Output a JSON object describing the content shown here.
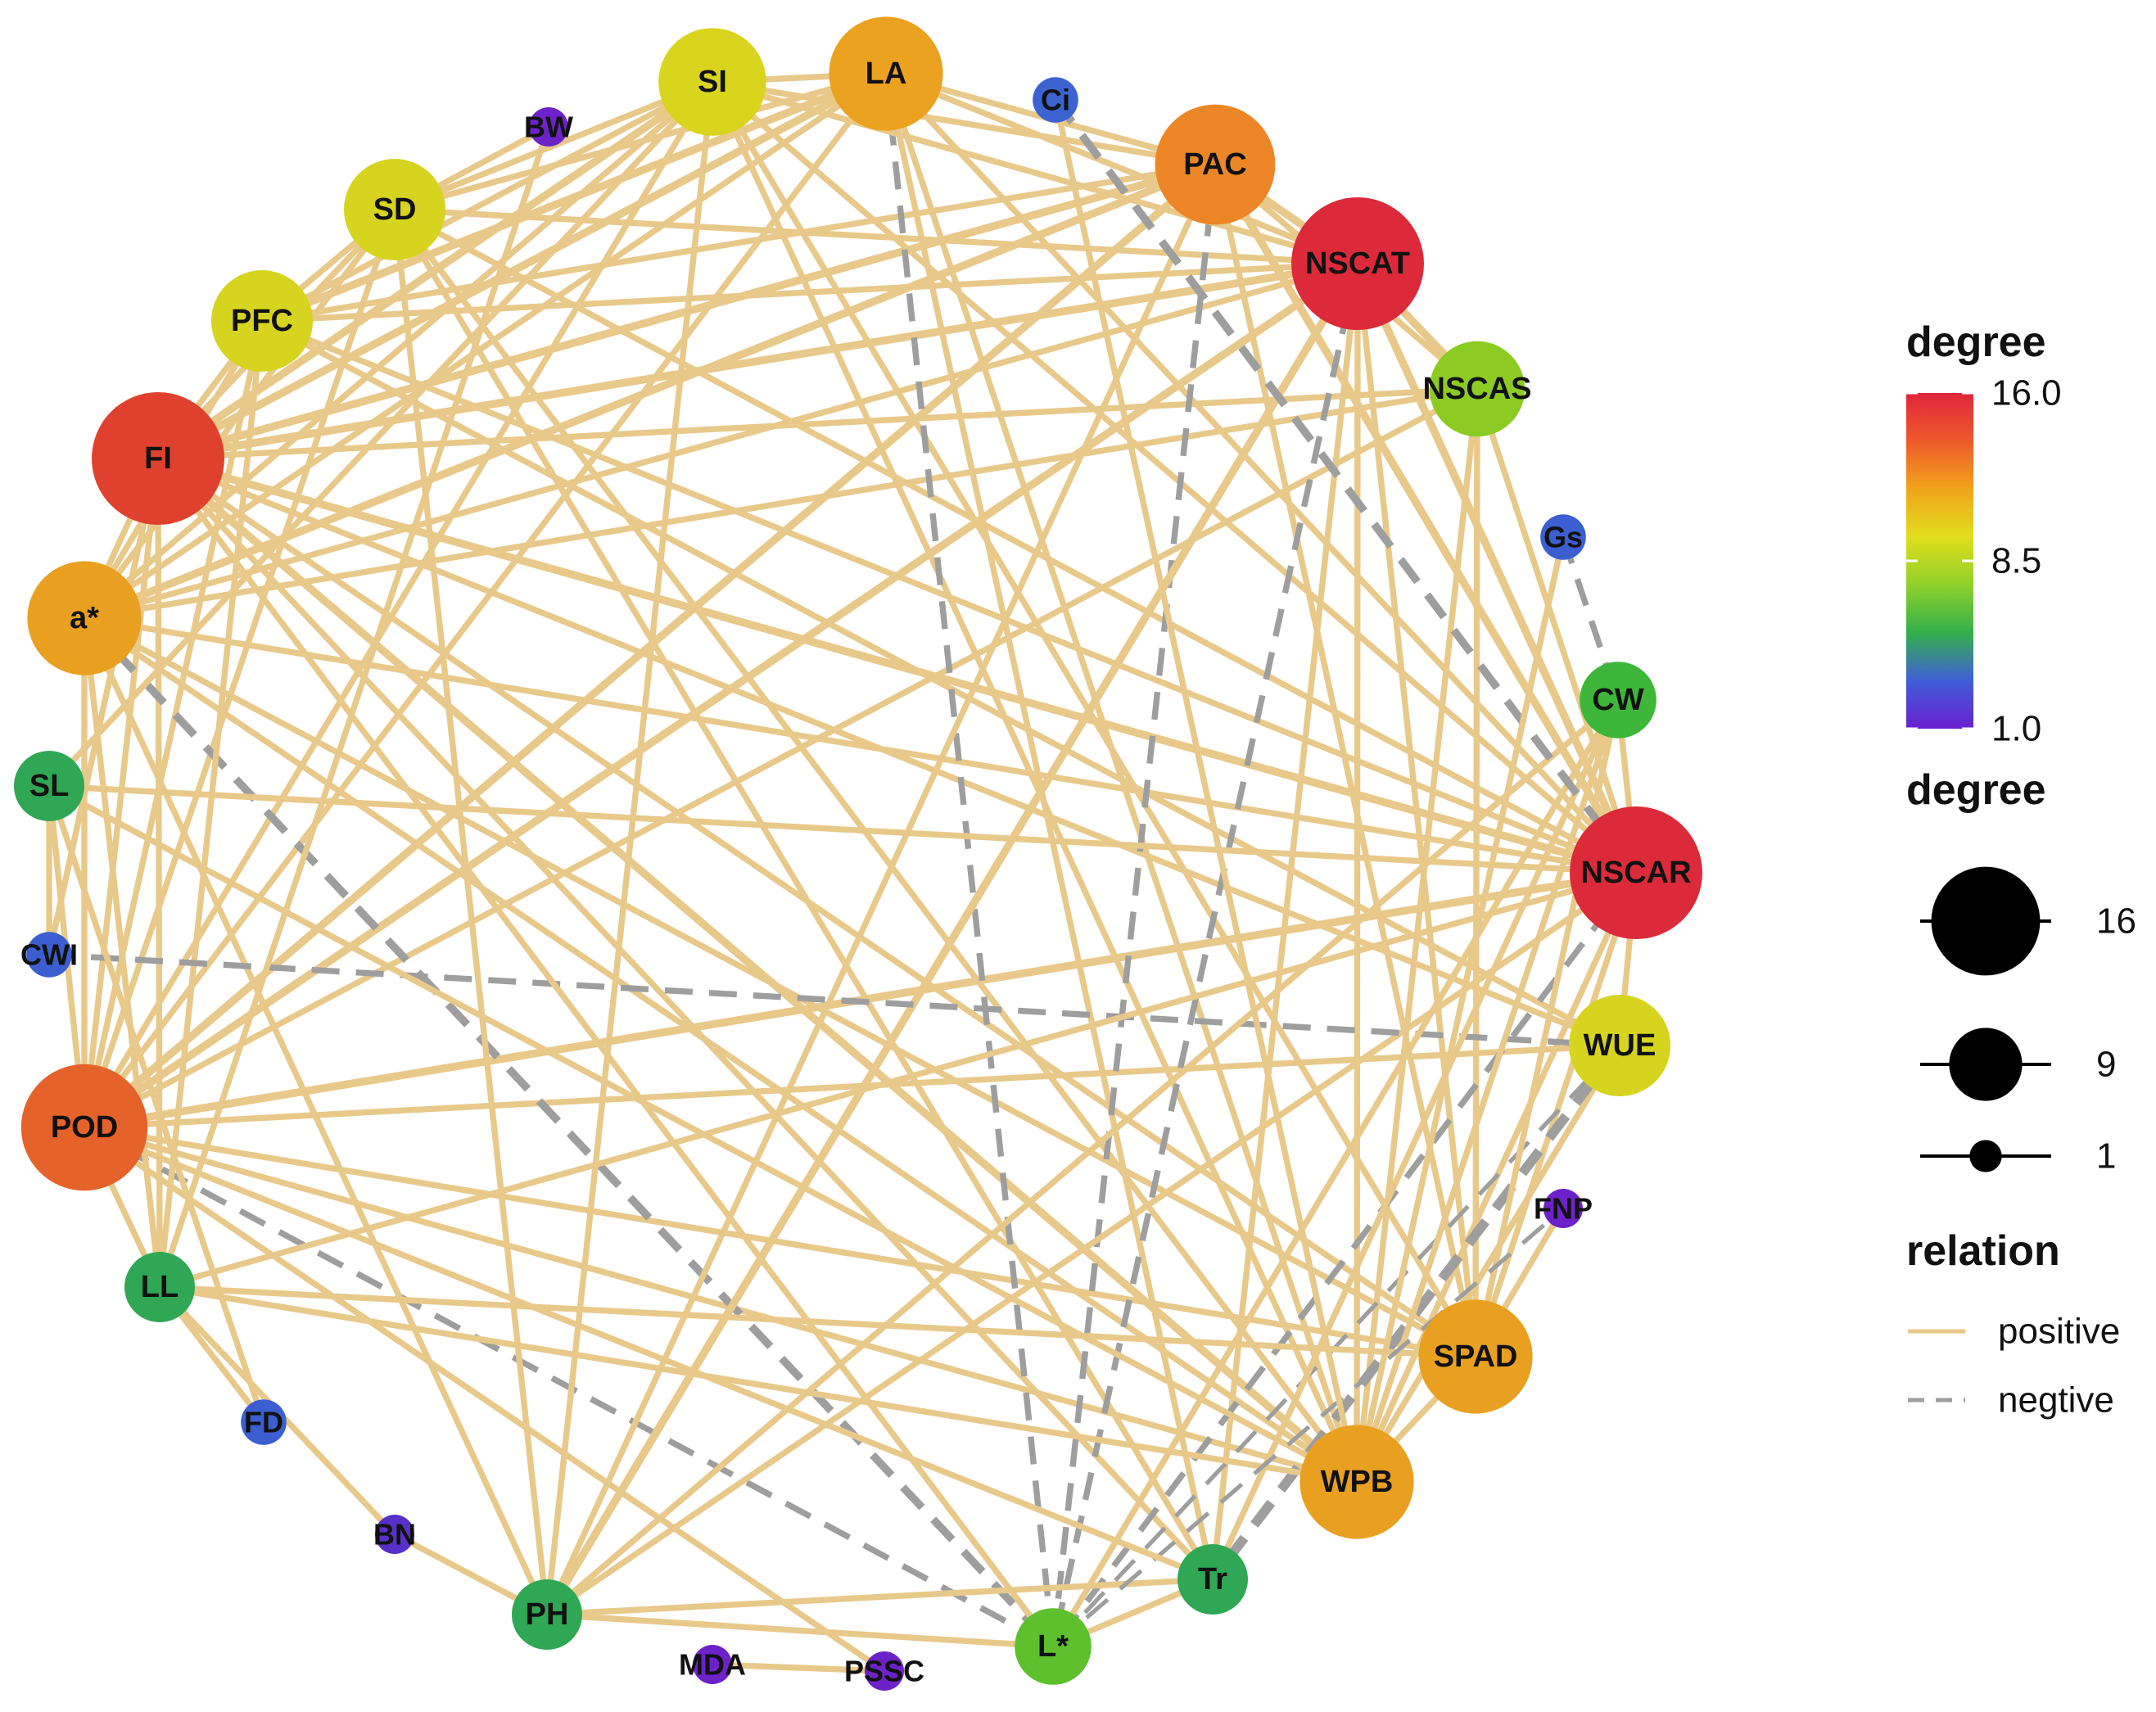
{
  "colors": {
    "positive": "#e8c98a",
    "negative": "#9e9e9e",
    "gradient": [
      "#6a1fcf",
      "#3f5fd8",
      "#33b04a",
      "#8fd12a",
      "#e2dd1c",
      "#f0a41c",
      "#ee5a2a",
      "#e0263c"
    ]
  },
  "nodes": [
    {
      "id": "SI",
      "label": "SI",
      "degree": 12,
      "color": "#d9d51f"
    },
    {
      "id": "LA",
      "label": "LA",
      "degree": 13,
      "color": "#eba221"
    },
    {
      "id": "Ci",
      "label": "Ci",
      "degree": 2,
      "color": "#3b63d2"
    },
    {
      "id": "PAC",
      "label": "PAC",
      "degree": 14,
      "color": "#ec8626"
    },
    {
      "id": "NSCAT",
      "label": "NSCAT",
      "degree": 16,
      "color": "#dc2a3a"
    },
    {
      "id": "NSCAS",
      "label": "NSCAS",
      "degree": 10,
      "color": "#8ccb22"
    },
    {
      "id": "Gs",
      "label": "Gs",
      "degree": 2,
      "color": "#3b5fd0"
    },
    {
      "id": "CW",
      "label": "CW",
      "degree": 7,
      "color": "#3db63a"
    },
    {
      "id": "NSCAR",
      "label": "NSCAR",
      "degree": 16,
      "color": "#dc2a3a"
    },
    {
      "id": "WUE",
      "label": "WUE",
      "degree": 11,
      "color": "#d6d41f"
    },
    {
      "id": "FNP",
      "label": "FNP",
      "degree": 1,
      "color": "#6d22c9"
    },
    {
      "id": "SPAD",
      "label": "SPAD",
      "degree": 13,
      "color": "#e9a021"
    },
    {
      "id": "WPB",
      "label": "WPB",
      "degree": 13,
      "color": "#e9a021"
    },
    {
      "id": "Tr",
      "label": "Tr",
      "degree": 6,
      "color": "#2fa755"
    },
    {
      "id": "L*",
      "label": "L*",
      "degree": 7,
      "color": "#5dc02c"
    },
    {
      "id": "PSSC",
      "label": "PSSC",
      "degree": 1,
      "color": "#6d22c9"
    },
    {
      "id": "MDA",
      "label": "MDA",
      "degree": 1,
      "color": "#6d22c9"
    },
    {
      "id": "PH",
      "label": "PH",
      "degree": 6,
      "color": "#2fa755"
    },
    {
      "id": "BN",
      "label": "BN",
      "degree": 1,
      "color": "#5630c8"
    },
    {
      "id": "FD",
      "label": "FD",
      "degree": 2,
      "color": "#3b5fd0"
    },
    {
      "id": "LL",
      "label": "LL",
      "degree": 6,
      "color": "#2fa755"
    },
    {
      "id": "POD",
      "label": "POD",
      "degree": 15,
      "color": "#e6622b"
    },
    {
      "id": "CWI",
      "label": "CWI",
      "degree": 2,
      "color": "#3b5fd0"
    },
    {
      "id": "SL",
      "label": "SL",
      "degree": 6,
      "color": "#2fa755"
    },
    {
      "id": "a*",
      "label": "a*",
      "degree": 13,
      "color": "#e9a021"
    },
    {
      "id": "FI",
      "label": "FI",
      "degree": 16,
      "color": "#e0412f"
    },
    {
      "id": "PFC",
      "label": "PFC",
      "degree": 11,
      "color": "#d6d41f"
    },
    {
      "id": "SD",
      "label": "SD",
      "degree": 11,
      "color": "#d6d41f"
    },
    {
      "id": "BW",
      "label": "BW",
      "degree": 1,
      "color": "#6d22c9"
    }
  ],
  "edges": [
    {
      "source": "FI",
      "target": "SI",
      "relation": "positive",
      "weight": 3
    },
    {
      "source": "FI",
      "target": "LA",
      "relation": "positive",
      "weight": 3
    },
    {
      "source": "FI",
      "target": "PAC",
      "relation": "positive",
      "weight": 3
    },
    {
      "source": "FI",
      "target": "NSCAT",
      "relation": "positive",
      "weight": 3
    },
    {
      "source": "FI",
      "target": "NSCAS",
      "relation": "positive",
      "weight": 2
    },
    {
      "source": "FI",
      "target": "NSCAR",
      "relation": "positive",
      "weight": 3
    },
    {
      "source": "FI",
      "target": "WUE",
      "relation": "positive",
      "weight": 2
    },
    {
      "source": "FI",
      "target": "SPAD",
      "relation": "positive",
      "weight": 2
    },
    {
      "source": "FI",
      "target": "WPB",
      "relation": "positive",
      "weight": 3
    },
    {
      "source": "FI",
      "target": "POD",
      "relation": "positive",
      "weight": 2
    },
    {
      "source": "FI",
      "target": "PFC",
      "relation": "positive",
      "weight": 2
    },
    {
      "source": "FI",
      "target": "SD",
      "relation": "positive",
      "weight": 2
    },
    {
      "source": "FI",
      "target": "LL",
      "relation": "positive",
      "weight": 2
    },
    {
      "source": "FI",
      "target": "Tr",
      "relation": "positive",
      "weight": 2
    },
    {
      "source": "FI",
      "target": "a*",
      "relation": "positive",
      "weight": 2
    },
    {
      "source": "POD",
      "target": "SI",
      "relation": "positive",
      "weight": 2
    },
    {
      "source": "POD",
      "target": "LA",
      "relation": "positive",
      "weight": 2
    },
    {
      "source": "POD",
      "target": "PAC",
      "relation": "positive",
      "weight": 3
    },
    {
      "source": "POD",
      "target": "NSCAT",
      "relation": "positive",
      "weight": 3
    },
    {
      "source": "POD",
      "target": "NSCAR",
      "relation": "positive",
      "weight": 3
    },
    {
      "source": "POD",
      "target": "WUE",
      "relation": "positive",
      "weight": 2
    },
    {
      "source": "POD",
      "target": "SPAD",
      "relation": "positive",
      "weight": 2
    },
    {
      "source": "POD",
      "target": "WPB",
      "relation": "positive",
      "weight": 2
    },
    {
      "source": "POD",
      "target": "PFC",
      "relation": "positive",
      "weight": 2
    },
    {
      "source": "POD",
      "target": "SD",
      "relation": "positive",
      "weight": 2
    },
    {
      "source": "POD",
      "target": "a*",
      "relation": "positive",
      "weight": 2
    },
    {
      "source": "POD",
      "target": "NSCAS",
      "relation": "positive",
      "weight": 2
    },
    {
      "source": "POD",
      "target": "L*",
      "relation": "negative",
      "weight": 2
    },
    {
      "source": "a*",
      "target": "SI",
      "relation": "positive",
      "weight": 2
    },
    {
      "source": "a*",
      "target": "LA",
      "relation": "positive",
      "weight": 2
    },
    {
      "source": "a*",
      "target": "PAC",
      "relation": "positive",
      "weight": 3
    },
    {
      "source": "a*",
      "target": "NSCAT",
      "relation": "positive",
      "weight": 2
    },
    {
      "source": "a*",
      "target": "NSCAR",
      "relation": "positive",
      "weight": 2
    },
    {
      "source": "a*",
      "target": "NSCAS",
      "relation": "positive",
      "weight": 2
    },
    {
      "source": "a*",
      "target": "SPAD",
      "relation": "positive",
      "weight": 2
    },
    {
      "source": "a*",
      "target": "WPB",
      "relation": "positive",
      "weight": 2
    },
    {
      "source": "a*",
      "target": "PFC",
      "relation": "positive",
      "weight": 2
    },
    {
      "source": "a*",
      "target": "SD",
      "relation": "positive",
      "weight": 2
    },
    {
      "source": "a*",
      "target": "L*",
      "relation": "negative",
      "weight": 3
    },
    {
      "source": "a*",
      "target": "PH",
      "relation": "positive",
      "weight": 2
    },
    {
      "source": "PFC",
      "target": "SI",
      "relation": "positive",
      "weight": 2
    },
    {
      "source": "PFC",
      "target": "LA",
      "relation": "positive",
      "weight": 3
    },
    {
      "source": "PFC",
      "target": "PAC",
      "relation": "positive",
      "weight": 2
    },
    {
      "source": "PFC",
      "target": "NSCAT",
      "relation": "positive",
      "weight": 2
    },
    {
      "source": "PFC",
      "target": "NSCAR",
      "relation": "positive",
      "weight": 2
    },
    {
      "source": "PFC",
      "target": "WUE",
      "relation": "positive",
      "weight": 2
    },
    {
      "source": "PFC",
      "target": "SD",
      "relation": "positive",
      "weight": 2
    },
    {
      "source": "PFC",
      "target": "LL",
      "relation": "positive",
      "weight": 2
    },
    {
      "source": "SD",
      "target": "SI",
      "relation": "positive",
      "weight": 2
    },
    {
      "source": "SD",
      "target": "LA",
      "relation": "positive",
      "weight": 2
    },
    {
      "source": "SD",
      "target": "NSCAT",
      "relation": "positive",
      "weight": 2
    },
    {
      "source": "SD",
      "target": "NSCAR",
      "relation": "positive",
      "weight": 2
    },
    {
      "source": "SD",
      "target": "WPB",
      "relation": "positive",
      "weight": 2
    },
    {
      "source": "SD",
      "target": "PH",
      "relation": "positive",
      "weight": 2
    },
    {
      "source": "SD",
      "target": "Tr",
      "relation": "positive",
      "weight": 2
    },
    {
      "source": "SI",
      "target": "LA",
      "relation": "positive",
      "weight": 2
    },
    {
      "source": "SI",
      "target": "PAC",
      "relation": "positive",
      "weight": 2
    },
    {
      "source": "SI",
      "target": "NSCAR",
      "relation": "positive",
      "weight": 2
    },
    {
      "source": "SI",
      "target": "WPB",
      "relation": "positive",
      "weight": 2
    },
    {
      "source": "SI",
      "target": "PH",
      "relation": "positive",
      "weight": 2
    },
    {
      "source": "SI",
      "target": "SPAD",
      "relation": "positive",
      "weight": 2
    },
    {
      "source": "LA",
      "target": "PAC",
      "relation": "positive",
      "weight": 2
    },
    {
      "source": "LA",
      "target": "NSCAT",
      "relation": "positive",
      "weight": 2
    },
    {
      "source": "LA",
      "target": "NSCAR",
      "relation": "positive",
      "weight": 2
    },
    {
      "source": "LA",
      "target": "WPB",
      "relation": "positive",
      "weight": 2
    },
    {
      "source": "LA",
      "target": "L*",
      "relation": "negative",
      "weight": 2
    },
    {
      "source": "LA",
      "target": "Tr",
      "relation": "positive",
      "weight": 2
    },
    {
      "source": "PAC",
      "target": "NSCAT",
      "relation": "positive",
      "weight": 3
    },
    {
      "source": "PAC",
      "target": "NSCAS",
      "relation": "positive",
      "weight": 2
    },
    {
      "source": "PAC",
      "target": "NSCAR",
      "relation": "positive",
      "weight": 3
    },
    {
      "source": "PAC",
      "target": "SPAD",
      "relation": "positive",
      "weight": 2
    },
    {
      "source": "PAC",
      "target": "L*",
      "relation": "negative",
      "weight": 2
    },
    {
      "source": "PAC",
      "target": "PH",
      "relation": "positive",
      "weight": 2
    },
    {
      "source": "NSCAT",
      "target": "NSCAS",
      "relation": "positive",
      "weight": 3
    },
    {
      "source": "NSCAT",
      "target": "NSCAR",
      "relation": "positive",
      "weight": 3
    },
    {
      "source": "NSCAT",
      "target": "WPB",
      "relation": "positive",
      "weight": 2
    },
    {
      "source": "NSCAT",
      "target": "SPAD",
      "relation": "positive",
      "weight": 2
    },
    {
      "source": "NSCAT",
      "target": "Tr",
      "relation": "positive",
      "weight": 2
    },
    {
      "source": "NSCAT",
      "target": "L*",
      "relation": "negative",
      "weight": 2
    },
    {
      "source": "NSCAT",
      "target": "PH",
      "relation": "positive",
      "weight": 3
    },
    {
      "source": "NSCAS",
      "target": "NSCAR",
      "relation": "positive",
      "weight": 2
    },
    {
      "source": "NSCAS",
      "target": "SPAD",
      "relation": "positive",
      "weight": 2
    },
    {
      "source": "NSCAS",
      "target": "WPB",
      "relation": "positive",
      "weight": 2
    },
    {
      "source": "NSCAR",
      "target": "WUE",
      "relation": "positive",
      "weight": 2
    },
    {
      "source": "NSCAR",
      "target": "WPB",
      "relation": "positive",
      "weight": 2
    },
    {
      "source": "NSCAR",
      "target": "SPAD",
      "relation": "positive",
      "weight": 2
    },
    {
      "source": "NSCAR",
      "target": "L*",
      "relation": "negative",
      "weight": 2
    },
    {
      "source": "NSCAR",
      "target": "PH",
      "relation": "positive",
      "weight": 2
    },
    {
      "source": "NSCAR",
      "target": "CW",
      "relation": "positive",
      "weight": 2
    },
    {
      "source": "WUE",
      "target": "WPB",
      "relation": "positive",
      "weight": 2
    },
    {
      "source": "WUE",
      "target": "Tr",
      "relation": "negative",
      "weight": 4
    },
    {
      "source": "WUE",
      "target": "L*",
      "relation": "negative",
      "weight": 1
    },
    {
      "source": "WUE",
      "target": "CWI",
      "relation": "negative",
      "weight": 2
    },
    {
      "source": "SPAD",
      "target": "WPB",
      "relation": "positive",
      "weight": 2
    },
    {
      "source": "SPAD",
      "target": "LL",
      "relation": "positive",
      "weight": 2
    },
    {
      "source": "SPAD",
      "target": "CW",
      "relation": "positive",
      "weight": 2
    },
    {
      "source": "WPB",
      "target": "CW",
      "relation": "positive",
      "weight": 2
    },
    {
      "source": "WPB",
      "target": "SL",
      "relation": "positive",
      "weight": 2
    },
    {
      "source": "WPB",
      "target": "LL",
      "relation": "positive",
      "weight": 2
    },
    {
      "source": "Tr",
      "target": "PH",
      "relation": "positive",
      "weight": 2
    },
    {
      "source": "Tr",
      "target": "CW",
      "relation": "positive",
      "weight": 2
    },
    {
      "source": "Tr",
      "target": "L*",
      "relation": "positive",
      "weight": 2
    },
    {
      "source": "L*",
      "target": "CW",
      "relation": "positive",
      "weight": 2
    },
    {
      "source": "L*",
      "target": "PH",
      "relation": "positive",
      "weight": 2
    },
    {
      "source": "L*",
      "target": "FNP",
      "relation": "negative",
      "weight": 1
    },
    {
      "source": "PH",
      "target": "CW",
      "relation": "positive",
      "weight": 2
    },
    {
      "source": "PH",
      "target": "BN",
      "relation": "positive",
      "weight": 2
    },
    {
      "source": "Ci",
      "target": "NSCAR",
      "relation": "negative",
      "weight": 3
    },
    {
      "source": "Ci",
      "target": "WPB",
      "relation": "positive",
      "weight": 2
    },
    {
      "source": "Gs",
      "target": "CW",
      "relation": "negative",
      "weight": 2
    },
    {
      "source": "Gs",
      "target": "WPB",
      "relation": "positive",
      "weight": 2
    },
    {
      "source": "FNP",
      "target": "SPAD",
      "relation": "positive",
      "weight": 2
    },
    {
      "source": "FD",
      "target": "LL",
      "relation": "positive",
      "weight": 2
    },
    {
      "source": "FD",
      "target": "SL",
      "relation": "positive",
      "weight": 2
    },
    {
      "source": "BN",
      "target": "LL",
      "relation": "positive",
      "weight": 2
    },
    {
      "source": "MDA",
      "target": "PSSC",
      "relation": "positive",
      "weight": 2
    },
    {
      "source": "PSSC",
      "target": "POD",
      "relation": "positive",
      "weight": 2
    },
    {
      "source": "BW",
      "target": "SD",
      "relation": "positive",
      "weight": 2
    },
    {
      "source": "BW",
      "target": "LL",
      "relation": "positive",
      "weight": 2
    },
    {
      "source": "CWI",
      "target": "SL",
      "relation": "positive",
      "weight": 2
    },
    {
      "source": "CWI",
      "target": "FI",
      "relation": "positive",
      "weight": 2
    },
    {
      "source": "SL",
      "target": "SI",
      "relation": "positive",
      "weight": 2
    },
    {
      "source": "SL",
      "target": "NSCAR",
      "relation": "positive",
      "weight": 2
    },
    {
      "source": "SL",
      "target": "POD",
      "relation": "positive",
      "weight": 2
    },
    {
      "source": "LL",
      "target": "POD",
      "relation": "positive",
      "weight": 2
    },
    {
      "source": "LL",
      "target": "NSCAR",
      "relation": "positive",
      "weight": 2
    },
    {
      "source": "LL",
      "target": "a*",
      "relation": "positive",
      "weight": 2
    },
    {
      "source": "SI",
      "target": "NSCAT",
      "relation": "positive",
      "weight": 2
    },
    {
      "source": "FI",
      "target": "L*",
      "relation": "positive",
      "weight": 2
    },
    {
      "source": "POD",
      "target": "Tr",
      "relation": "positive",
      "weight": 2
    }
  ],
  "legend": {
    "color_title": "degree",
    "color_ticks": [
      "16.0",
      "8.5",
      "1.0"
    ],
    "color_tick_values": [
      16.0,
      8.5,
      1.0
    ],
    "size_title": "degree",
    "size_items": [
      {
        "label": "16",
        "degree": 16
      },
      {
        "label": "9",
        "degree": 9
      },
      {
        "label": "1",
        "degree": 1
      }
    ],
    "relation_title": "relation",
    "relation_items": [
      {
        "label": "positive",
        "relation": "positive"
      },
      {
        "label": "negtive",
        "relation": "negative"
      }
    ]
  }
}
